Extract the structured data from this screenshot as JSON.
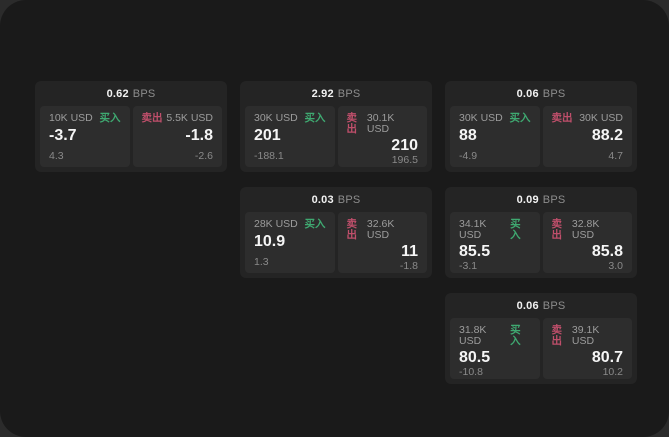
{
  "colors": {
    "buy": "#3fa971",
    "sell": "#c04f6b",
    "page_bg": "#1a1a1a",
    "card_bg": "#242424",
    "panel_bg": "#2d2d2d"
  },
  "labels": {
    "bps_suffix": "BPS",
    "buy": "买入",
    "sell": "卖出"
  },
  "cards": [
    {
      "col": 1,
      "row": 1,
      "bps": "0.62",
      "left": {
        "amount": "10K USD",
        "price": "-3.7",
        "delta": "4.3"
      },
      "right": {
        "amount": "5.5K USD",
        "price": "-1.8",
        "delta": "-2.6"
      }
    },
    {
      "col": 2,
      "row": 1,
      "bps": "2.92",
      "left": {
        "amount": "30K USD",
        "price": "201",
        "delta": "-188.1"
      },
      "right": {
        "amount": "30.1K USD",
        "price": "210",
        "delta": "196.5"
      }
    },
    {
      "col": 3,
      "row": 1,
      "bps": "0.06",
      "left": {
        "amount": "30K USD",
        "price": "88",
        "delta": "-4.9"
      },
      "right": {
        "amount": "30K USD",
        "price": "88.2",
        "delta": "4.7"
      }
    },
    {
      "col": 2,
      "row": 2,
      "bps": "0.03",
      "left": {
        "amount": "28K USD",
        "price": "10.9",
        "delta": "1.3"
      },
      "right": {
        "amount": "32.6K USD",
        "price": "11",
        "delta": "-1.8"
      }
    },
    {
      "col": 3,
      "row": 2,
      "bps": "0.09",
      "left": {
        "amount": "34.1K USD",
        "price": "85.5",
        "delta": "-3.1"
      },
      "right": {
        "amount": "32.8K USD",
        "price": "85.8",
        "delta": "3.0"
      }
    },
    {
      "col": 3,
      "row": 3,
      "bps": "0.06",
      "left": {
        "amount": "31.8K USD",
        "price": "80.5",
        "delta": "-10.8"
      },
      "right": {
        "amount": "39.1K USD",
        "price": "80.7",
        "delta": "10.2"
      }
    }
  ]
}
